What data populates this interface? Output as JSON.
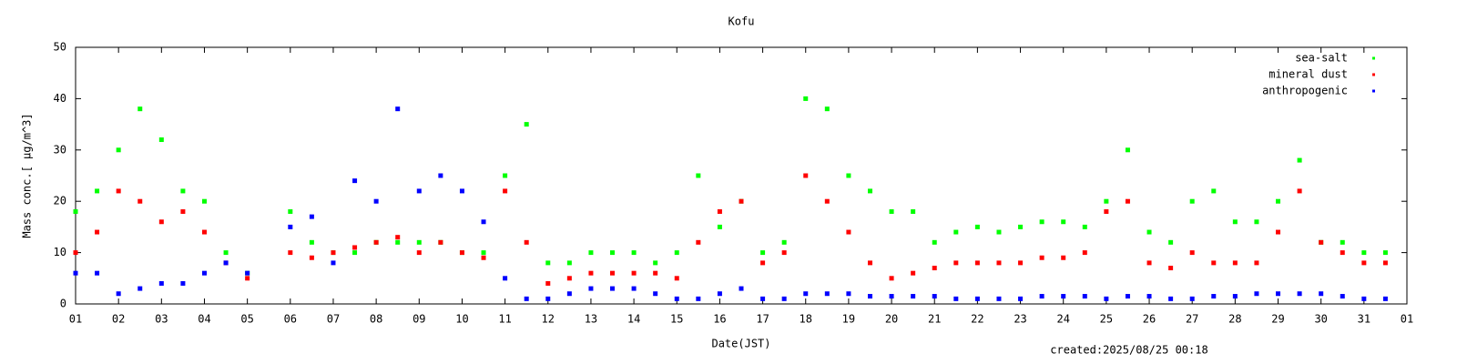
{
  "chart_data": {
    "type": "scatter",
    "title": "Kofu",
    "xlabel": "Date(JST)",
    "ylabel": "Mass conc.[ μg/m^3]",
    "footer": "created:2025/08/25 00:18",
    "x": [
      1,
      1.5,
      2,
      2.5,
      3,
      3.5,
      4,
      4.5,
      5,
      5.5,
      6,
      6.5,
      7,
      7.5,
      8,
      8.5,
      9,
      9.5,
      10,
      10.5,
      11,
      11.5,
      12,
      12.5,
      13,
      13.5,
      14,
      14.5,
      15,
      15.5,
      16,
      16.5,
      17,
      17.5,
      18,
      18.5,
      19,
      19.5,
      20,
      20.5,
      21,
      21.5,
      22,
      22.5,
      23,
      23.5,
      24,
      24.5,
      25,
      25.5,
      26,
      26.5,
      27,
      27.5,
      28,
      28.5,
      29,
      29.5,
      30,
      30.5,
      31,
      31.5
    ],
    "series": [
      {
        "name": "sea-salt",
        "color": "#00ff00",
        "values": [
          18,
          22,
          30,
          38,
          32,
          22,
          20,
          10,
          6,
          null,
          18,
          12,
          10,
          10,
          12,
          12,
          12,
          12,
          10,
          10,
          25,
          35,
          8,
          8,
          10,
          10,
          10,
          8,
          10,
          25,
          15,
          20,
          10,
          12,
          40,
          38,
          25,
          22,
          18,
          18,
          12,
          14,
          15,
          14,
          15,
          16,
          16,
          15,
          20,
          30,
          14,
          12,
          20,
          22,
          16,
          16,
          20,
          28,
          12,
          12,
          10,
          10
        ]
      },
      {
        "name": "mineral dust",
        "color": "#ff0000",
        "values": [
          10,
          14,
          22,
          20,
          16,
          18,
          14,
          8,
          5,
          null,
          10,
          9,
          10,
          11,
          12,
          13,
          10,
          12,
          10,
          9,
          22,
          12,
          4,
          5,
          6,
          6,
          6,
          6,
          5,
          12,
          18,
          20,
          8,
          10,
          25,
          20,
          14,
          8,
          5,
          6,
          7,
          8,
          8,
          8,
          8,
          9,
          9,
          10,
          18,
          20,
          8,
          7,
          10,
          8,
          8,
          8,
          14,
          22,
          12,
          10,
          8,
          8
        ]
      },
      {
        "name": "anthropogenic",
        "color": "#0000ff",
        "values": [
          6,
          6,
          2,
          3,
          4,
          4,
          6,
          8,
          6,
          null,
          15,
          17,
          8,
          24,
          20,
          38,
          22,
          25,
          22,
          16,
          5,
          1,
          1,
          2,
          3,
          3,
          3,
          2,
          1,
          1,
          2,
          3,
          1,
          1,
          2,
          2,
          2,
          1.5,
          1.5,
          1.5,
          1.5,
          1,
          1,
          1,
          1,
          1.5,
          1.5,
          1.5,
          1,
          1.5,
          1.5,
          1,
          1,
          1.5,
          1.5,
          2,
          2,
          2,
          2,
          1.5,
          1,
          1
        ]
      }
    ],
    "xlim": [
      1,
      32
    ],
    "xticks": [
      {
        "value": 1,
        "label": "01"
      },
      {
        "value": 2,
        "label": "02"
      },
      {
        "value": 3,
        "label": "03"
      },
      {
        "value": 4,
        "label": "04"
      },
      {
        "value": 5,
        "label": "05"
      },
      {
        "value": 6,
        "label": "06"
      },
      {
        "value": 7,
        "label": "07"
      },
      {
        "value": 8,
        "label": "08"
      },
      {
        "value": 9,
        "label": "09"
      },
      10,
      11,
      12,
      13,
      14,
      15,
      16,
      17,
      18,
      19,
      20,
      21,
      22,
      23,
      24,
      25,
      26,
      27,
      28,
      29,
      30,
      31,
      {
        "value": 32,
        "label": "01"
      }
    ],
    "ylim": [
      0,
      50
    ],
    "yticks": [
      0,
      10,
      20,
      30,
      40,
      50
    ],
    "legend": "upper right"
  }
}
